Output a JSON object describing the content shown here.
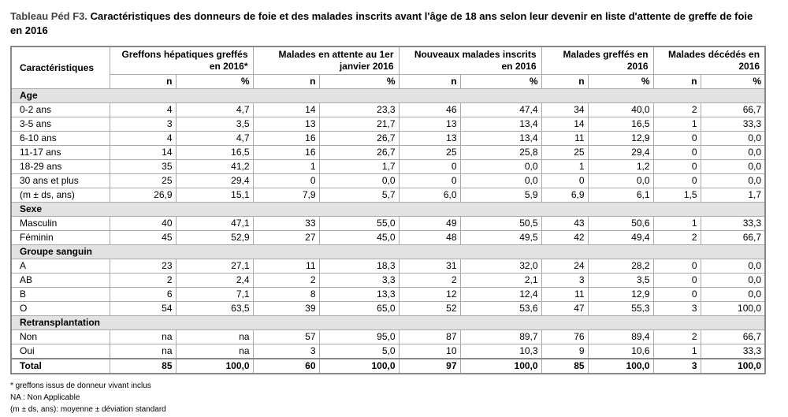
{
  "title": {
    "label": "Tableau Péd F3.",
    "text": "Caractéristiques des donneurs de foie et des malades inscrits avant l'âge de 18 ans selon leur devenir en liste d'attente de greffe de foie en 2016"
  },
  "table": {
    "first_header": "Caractéristiques",
    "groups": [
      "Greffons hépatiques greffés en 2016*",
      "Malades en attente au 1er janvier 2016",
      "Nouveaux malades inscrits en 2016",
      "Malades greffés en 2016",
      "Malades décédés en 2016"
    ],
    "subheaders": [
      "n",
      "%"
    ],
    "sections": [
      {
        "label": "Age",
        "rows": [
          [
            "0-2 ans",
            "4",
            "4,7",
            "14",
            "23,3",
            "46",
            "47,4",
            "34",
            "40,0",
            "2",
            "66,7"
          ],
          [
            "3-5 ans",
            "3",
            "3,5",
            "13",
            "21,7",
            "13",
            "13,4",
            "14",
            "16,5",
            "1",
            "33,3"
          ],
          [
            "6-10 ans",
            "4",
            "4,7",
            "16",
            "26,7",
            "13",
            "13,4",
            "11",
            "12,9",
            "0",
            "0,0"
          ],
          [
            "11-17 ans",
            "14",
            "16,5",
            "16",
            "26,7",
            "25",
            "25,8",
            "25",
            "29,4",
            "0",
            "0,0"
          ],
          [
            "18-29 ans",
            "35",
            "41,2",
            "1",
            "1,7",
            "0",
            "0,0",
            "1",
            "1,2",
            "0",
            "0,0"
          ],
          [
            "30 ans et plus",
            "25",
            "29,4",
            "0",
            "0,0",
            "0",
            "0,0",
            "0",
            "0,0",
            "0",
            "0,0"
          ],
          [
            "(m ± ds, ans)",
            "26,9",
            "15,1",
            "7,9",
            "5,7",
            "6,0",
            "5,9",
            "6,9",
            "6,1",
            "1,5",
            "1,7"
          ]
        ]
      },
      {
        "label": "Sexe",
        "rows": [
          [
            "Masculin",
            "40",
            "47,1",
            "33",
            "55,0",
            "49",
            "50,5",
            "43",
            "50,6",
            "1",
            "33,3"
          ],
          [
            "Féminin",
            "45",
            "52,9",
            "27",
            "45,0",
            "48",
            "49,5",
            "42",
            "49,4",
            "2",
            "66,7"
          ]
        ]
      },
      {
        "label": "Groupe sanguin",
        "rows": [
          [
            "A",
            "23",
            "27,1",
            "11",
            "18,3",
            "31",
            "32,0",
            "24",
            "28,2",
            "0",
            "0,0"
          ],
          [
            "AB",
            "2",
            "2,4",
            "2",
            "3,3",
            "2",
            "2,1",
            "3",
            "3,5",
            "0",
            "0,0"
          ],
          [
            "B",
            "6",
            "7,1",
            "8",
            "13,3",
            "12",
            "12,4",
            "11",
            "12,9",
            "0",
            "0,0"
          ],
          [
            "O",
            "54",
            "63,5",
            "39",
            "65,0",
            "52",
            "53,6",
            "47",
            "55,3",
            "3",
            "100,0"
          ]
        ]
      },
      {
        "label": "Retransplantation",
        "rows": [
          [
            "Non",
            "na",
            "na",
            "57",
            "95,0",
            "87",
            "89,7",
            "76",
            "89,4",
            "2",
            "66,7"
          ],
          [
            "Oui",
            "na",
            "na",
            "3",
            "5,0",
            "10",
            "10,3",
            "9",
            "10,6",
            "1",
            "33,3"
          ]
        ]
      }
    ],
    "total": [
      "Total",
      "85",
      "100,0",
      "60",
      "100,0",
      "97",
      "100,0",
      "85",
      "100,0",
      "3",
      "100,0"
    ]
  },
  "footnotes": [
    "* greffons issus de donneur vivant inclus",
    "NA : Non Applicable",
    "(m ± ds, ans): moyenne ± déviation standard"
  ]
}
